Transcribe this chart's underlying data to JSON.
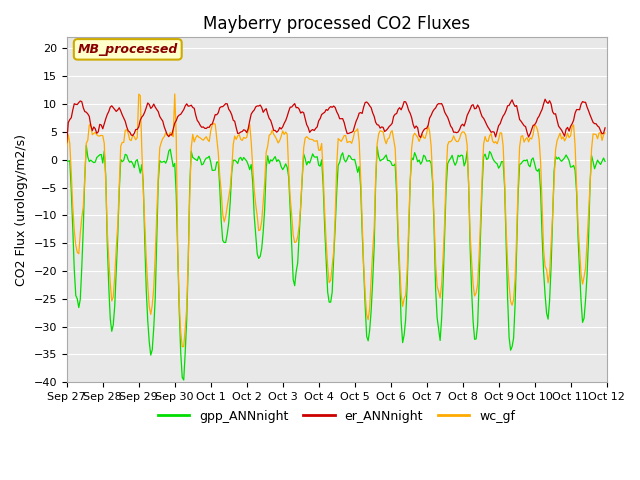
{
  "title": "Mayberry processed CO2 Fluxes",
  "ylabel": "CO2 Flux (urology/m2/s)",
  "ylim": [
    -40,
    22
  ],
  "yticks": [
    -40,
    -35,
    -30,
    -25,
    -20,
    -15,
    -10,
    -5,
    0,
    5,
    10,
    15,
    20
  ],
  "legend_labels": [
    "gpp_ANNnight",
    "er_ANNnight",
    "wc_gf"
  ],
  "legend_colors": [
    "#00dd00",
    "#cc0000",
    "#ffaa00"
  ],
  "line_colors": [
    "#00dd00",
    "#cc0000",
    "#ffaa00"
  ],
  "annotation_text": "MB_processed",
  "annotation_color": "#880000",
  "annotation_bg": "#ffffcc",
  "annotation_edge": "#ccaa00",
  "fig_bg": "#ffffff",
  "plot_bg": "#e8e8e8",
  "grid_color": "#ffffff",
  "title_fontsize": 12,
  "axis_label_fontsize": 9,
  "tick_fontsize": 8,
  "legend_fontsize": 9,
  "date_labels": [
    "Sep 27",
    "Sep 28",
    "Sep 29",
    "Sep 30",
    "Oct 1",
    "Oct 2",
    "Oct 3",
    "Oct 4",
    "Oct 5",
    "Oct 6",
    "Oct 7",
    "Oct 8",
    "Oct 9",
    "Oct 10",
    "Oct 11",
    "Oct 12"
  ],
  "date_tick_positions": [
    0,
    24,
    48,
    72,
    96,
    120,
    144,
    168,
    192,
    216,
    240,
    264,
    288,
    312,
    336,
    360
  ]
}
